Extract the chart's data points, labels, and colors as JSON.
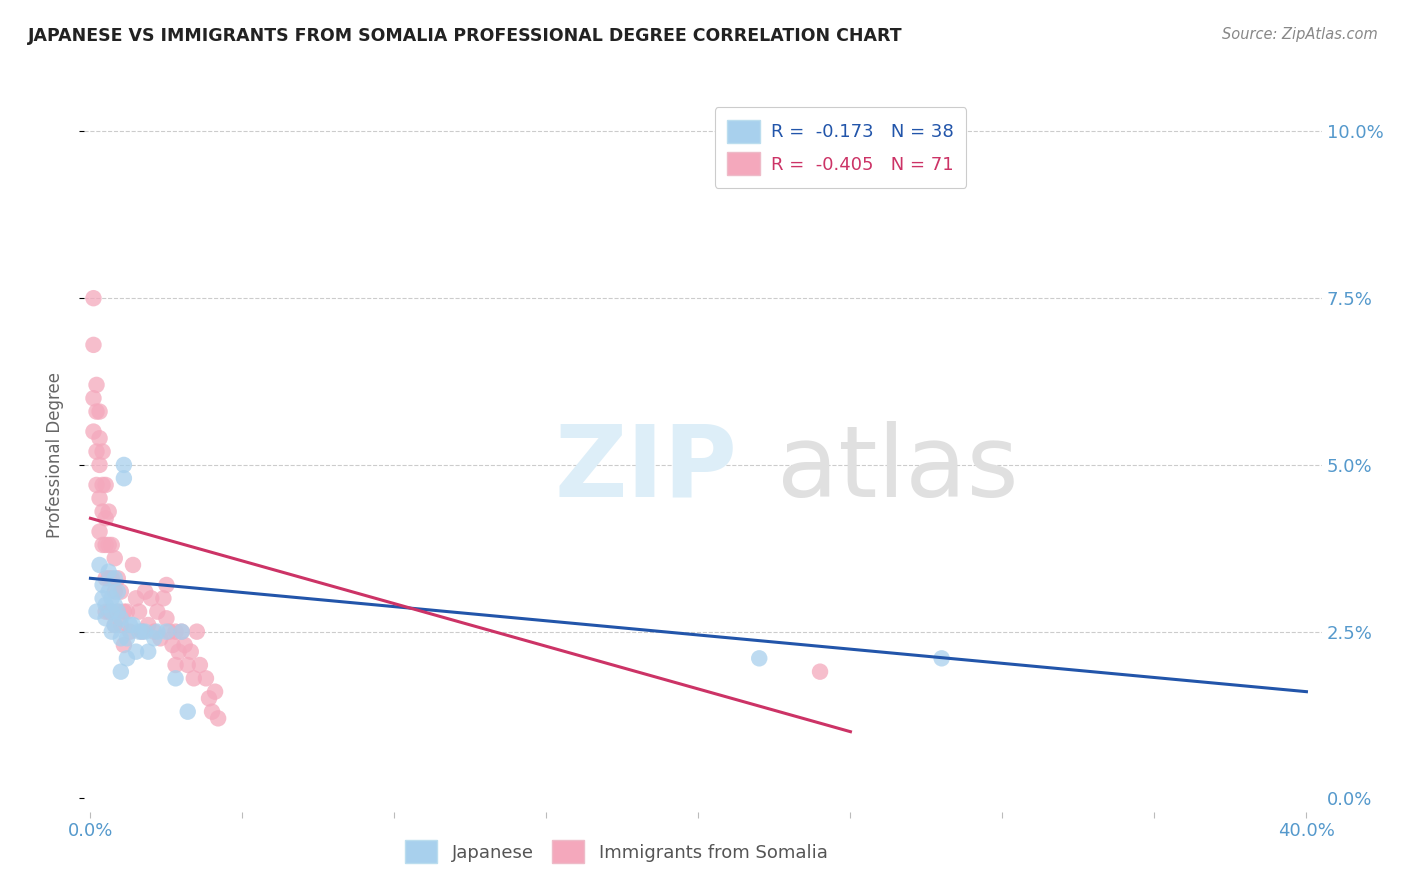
{
  "title": "JAPANESE VS IMMIGRANTS FROM SOMALIA PROFESSIONAL DEGREE CORRELATION CHART",
  "source": "Source: ZipAtlas.com",
  "ylabel": "Professional Degree",
  "xlim": [
    -0.002,
    0.405
  ],
  "ylim": [
    -0.002,
    0.105
  ],
  "xticks": [
    0.0,
    0.05,
    0.1,
    0.15,
    0.2,
    0.25,
    0.3,
    0.35,
    0.4
  ],
  "xtick_labels": [
    "0.0%",
    "",
    "",
    "",
    "",
    "",
    "",
    "",
    "40.0%"
  ],
  "yticks": [
    0.0,
    0.025,
    0.05,
    0.075,
    0.1
  ],
  "ytick_labels_right": [
    "0.0%",
    "2.5%",
    "5.0%",
    "7.5%",
    "10.0%"
  ],
  "legend_R1": "-0.173",
  "legend_N1": "38",
  "legend_R2": "-0.405",
  "legend_N2": "71",
  "series1_label": "Japanese",
  "series2_label": "Immigrants from Somalia",
  "color_japanese": "#a8d0ed",
  "color_somalia": "#f4a8bc",
  "color_line_japanese": "#2255aa",
  "color_line_somalia": "#cc3366",
  "background_color": "#ffffff",
  "japanese_x": [
    0.002,
    0.003,
    0.004,
    0.004,
    0.005,
    0.005,
    0.006,
    0.006,
    0.007,
    0.007,
    0.007,
    0.008,
    0.008,
    0.008,
    0.009,
    0.009,
    0.01,
    0.01,
    0.01,
    0.011,
    0.011,
    0.012,
    0.012,
    0.013,
    0.014,
    0.015,
    0.016,
    0.017,
    0.018,
    0.019,
    0.021,
    0.022,
    0.025,
    0.028,
    0.03,
    0.032,
    0.22,
    0.28
  ],
  "japanese_y": [
    0.028,
    0.035,
    0.032,
    0.03,
    0.029,
    0.027,
    0.034,
    0.031,
    0.03,
    0.028,
    0.025,
    0.033,
    0.029,
    0.026,
    0.031,
    0.028,
    0.027,
    0.024,
    0.019,
    0.05,
    0.048,
    0.024,
    0.021,
    0.026,
    0.026,
    0.022,
    0.025,
    0.025,
    0.025,
    0.022,
    0.024,
    0.025,
    0.025,
    0.018,
    0.025,
    0.013,
    0.021,
    0.021
  ],
  "somalia_x": [
    0.001,
    0.001,
    0.001,
    0.001,
    0.002,
    0.002,
    0.002,
    0.002,
    0.003,
    0.003,
    0.003,
    0.003,
    0.003,
    0.004,
    0.004,
    0.004,
    0.004,
    0.005,
    0.005,
    0.005,
    0.005,
    0.005,
    0.006,
    0.006,
    0.006,
    0.006,
    0.007,
    0.007,
    0.007,
    0.008,
    0.008,
    0.008,
    0.009,
    0.009,
    0.01,
    0.01,
    0.011,
    0.011,
    0.012,
    0.013,
    0.014,
    0.015,
    0.016,
    0.017,
    0.018,
    0.019,
    0.02,
    0.021,
    0.022,
    0.023,
    0.024,
    0.025,
    0.025,
    0.026,
    0.027,
    0.028,
    0.028,
    0.029,
    0.03,
    0.031,
    0.032,
    0.033,
    0.034,
    0.035,
    0.036,
    0.038,
    0.039,
    0.04,
    0.041,
    0.042,
    0.24
  ],
  "somalia_y": [
    0.055,
    0.06,
    0.068,
    0.075,
    0.062,
    0.058,
    0.052,
    0.047,
    0.058,
    0.054,
    0.05,
    0.045,
    0.04,
    0.052,
    0.047,
    0.043,
    0.038,
    0.047,
    0.042,
    0.038,
    0.033,
    0.028,
    0.043,
    0.038,
    0.033,
    0.028,
    0.038,
    0.033,
    0.028,
    0.036,
    0.031,
    0.026,
    0.033,
    0.028,
    0.031,
    0.026,
    0.028,
    0.023,
    0.028,
    0.025,
    0.035,
    0.03,
    0.028,
    0.025,
    0.031,
    0.026,
    0.03,
    0.025,
    0.028,
    0.024,
    0.03,
    0.032,
    0.027,
    0.025,
    0.023,
    0.025,
    0.02,
    0.022,
    0.025,
    0.023,
    0.02,
    0.022,
    0.018,
    0.025,
    0.02,
    0.018,
    0.015,
    0.013,
    0.016,
    0.012,
    0.019
  ],
  "j_line_x0": 0.0,
  "j_line_x1": 0.4,
  "j_line_y0": 0.033,
  "j_line_y1": 0.016,
  "s_line_x0": 0.0,
  "s_line_x1": 0.25,
  "s_line_y0": 0.042,
  "s_line_y1": 0.01
}
